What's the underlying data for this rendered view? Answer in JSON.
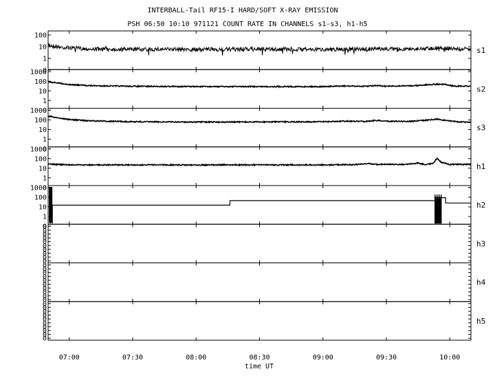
{
  "title": "INTERBALL-Tail RF15-I HARD/SOFT X-RAY EMISSION",
  "subtitle": "PSH 06:50 10:10 971121  COUNT RATE IN CHANNELS s1-s3, h1-h5",
  "xlabel": "time UT",
  "x_ticks": [
    "07:00",
    "07:30",
    "08:00",
    "08:30",
    "09:00",
    "09:30",
    "10:00"
  ],
  "chart_data": {
    "type": "line",
    "x_range": [
      "06:50",
      "10:10"
    ],
    "x_axis_label": "time UT",
    "y_scale": "log",
    "grid": false,
    "panels": [
      {
        "name": "s1",
        "yticks": [
          "100",
          "10",
          "1",
          "0"
        ],
        "points": [
          [
            "06:50",
            15
          ],
          [
            "06:52",
            12
          ],
          [
            "06:56",
            9
          ],
          [
            "07:10",
            6.5
          ],
          [
            "07:30",
            6
          ],
          [
            "08:00",
            6
          ],
          [
            "08:30",
            6
          ],
          [
            "09:00",
            6
          ],
          [
            "09:30",
            6.5
          ],
          [
            "09:45",
            6.5
          ],
          [
            "09:55",
            8
          ],
          [
            "10:00",
            7
          ],
          [
            "10:10",
            6
          ]
        ]
      },
      {
        "name": "s2",
        "yticks": [
          "1000",
          "100",
          "10",
          "1",
          "0"
        ],
        "points": [
          [
            "06:50",
            90
          ],
          [
            "06:55",
            65
          ],
          [
            "07:00",
            45
          ],
          [
            "07:10",
            35
          ],
          [
            "07:30",
            30
          ],
          [
            "08:00",
            28
          ],
          [
            "08:30",
            28
          ],
          [
            "09:00",
            28
          ],
          [
            "09:10",
            32
          ],
          [
            "09:20",
            30
          ],
          [
            "09:25",
            35
          ],
          [
            "09:30",
            30
          ],
          [
            "09:45",
            36
          ],
          [
            "09:50",
            45
          ],
          [
            "09:54",
            50
          ],
          [
            "09:58",
            45
          ],
          [
            "10:02",
            32
          ],
          [
            "10:10",
            30
          ]
        ]
      },
      {
        "name": "s3",
        "yticks": [
          "1000",
          "100",
          "10",
          "1",
          "0"
        ],
        "points": [
          [
            "06:50",
            250
          ],
          [
            "06:55",
            160
          ],
          [
            "07:00",
            110
          ],
          [
            "07:10",
            80
          ],
          [
            "07:30",
            65
          ],
          [
            "08:00",
            60
          ],
          [
            "08:30",
            62
          ],
          [
            "09:00",
            65
          ],
          [
            "09:10",
            75
          ],
          [
            "09:20",
            70
          ],
          [
            "09:25",
            90
          ],
          [
            "09:30",
            75
          ],
          [
            "09:40",
            70
          ],
          [
            "09:45",
            80
          ],
          [
            "09:50",
            100
          ],
          [
            "09:54",
            120
          ],
          [
            "09:58",
            90
          ],
          [
            "10:05",
            60
          ],
          [
            "10:10",
            60
          ]
        ]
      },
      {
        "name": "h1",
        "yticks": [
          "1000",
          "100",
          "10",
          "1",
          "0"
        ],
        "points": [
          [
            "06:50",
            30
          ],
          [
            "06:53",
            25
          ],
          [
            "07:00",
            22
          ],
          [
            "07:30",
            22
          ],
          [
            "08:00",
            22
          ],
          [
            "08:30",
            22
          ],
          [
            "09:00",
            22
          ],
          [
            "09:15",
            24
          ],
          [
            "09:22",
            30
          ],
          [
            "09:25",
            25
          ],
          [
            "09:40",
            25
          ],
          [
            "09:45",
            35
          ],
          [
            "09:48",
            25
          ],
          [
            "09:52",
            30
          ],
          [
            "09:54",
            110
          ],
          [
            "09:56",
            40
          ],
          [
            "10:00",
            25
          ],
          [
            "10:10",
            25
          ]
        ]
      },
      {
        "name": "h2",
        "yticks": [
          "1000",
          "100",
          "10",
          "1",
          "0"
        ],
        "steps": [
          [
            "06:52",
            15
          ],
          [
            "08:16",
            45
          ],
          [
            "09:53",
            90
          ],
          [
            "09:58",
            25
          ],
          [
            "10:10",
            25
          ]
        ]
      },
      {
        "name": "h3",
        "yticks": [
          "0",
          "0",
          "0",
          "0",
          "0",
          "0",
          "0",
          "0",
          "0",
          "0"
        ],
        "points": []
      },
      {
        "name": "h4",
        "yticks": [
          "0",
          "0",
          "0",
          "0",
          "0",
          "0",
          "0",
          "0",
          "0",
          "0"
        ],
        "points": []
      },
      {
        "name": "h5",
        "yticks": [
          "0",
          "0",
          "0",
          "0",
          "0",
          "0",
          "0",
          "0",
          "0",
          "0"
        ],
        "points": []
      }
    ]
  }
}
